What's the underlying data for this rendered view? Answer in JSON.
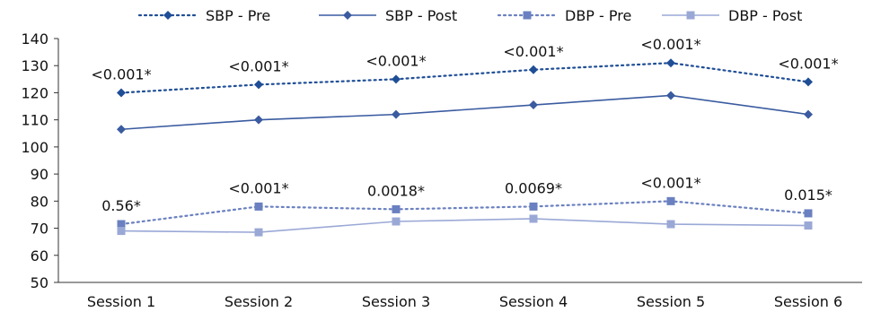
{
  "chart_data": {
    "type": "line",
    "title": "",
    "xlabel": "",
    "ylabel": "",
    "ylim": [
      50,
      140
    ],
    "yticks": [
      50,
      60,
      70,
      80,
      90,
      100,
      110,
      120,
      130,
      140
    ],
    "categories": [
      "Session 1",
      "Session 2",
      "Session 3",
      "Session 4",
      "Session 5",
      "Session 6"
    ],
    "grid": false,
    "legend_position": "top",
    "series": [
      {
        "name": "SBP - Pre",
        "values": [
          120,
          123,
          125,
          128.5,
          131,
          124
        ],
        "color": "#1f4e96",
        "line_style": "dotted",
        "marker": "diamond"
      },
      {
        "name": "SBP - Post",
        "values": [
          106.5,
          110,
          112,
          115.5,
          119,
          112
        ],
        "color": "#3a5ba0",
        "line_style": "solid",
        "marker": "diamond"
      },
      {
        "name": "DBP - Pre",
        "values": [
          71.5,
          78,
          77,
          78,
          80,
          75.5
        ],
        "color": "#6a80c0",
        "line_style": "dotted",
        "marker": "square"
      },
      {
        "name": "DBP - Post",
        "values": [
          69,
          68.5,
          72.5,
          73.5,
          71.5,
          71
        ],
        "color": "#9aa8d6",
        "line_style": "solid",
        "marker": "square"
      }
    ],
    "annotations_sbp": [
      "<0.001*",
      "<0.001*",
      "<0.001*",
      "<0.001*",
      "<0.001*",
      "<0.001*"
    ],
    "annotations_dbp": [
      "0.56*",
      "<0.001*",
      "0.0018*",
      "0.0069*",
      "<0.001*",
      "0.015*"
    ]
  }
}
